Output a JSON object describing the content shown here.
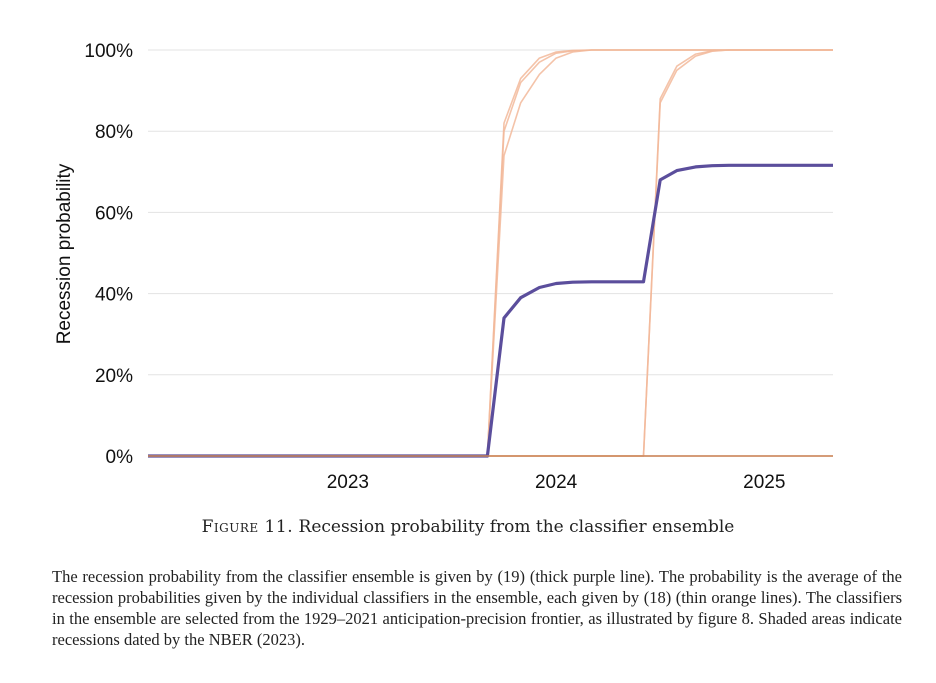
{
  "chart_data": {
    "type": "line",
    "title": "",
    "xlabel": "",
    "ylabel": "Recession probability",
    "x_ticks": [
      2023,
      2024,
      2025
    ],
    "x_tick_labels": [
      "2023",
      "2024",
      "2025"
    ],
    "xlim": [
      2022.04,
      2025.33
    ],
    "y_ticks": [
      0,
      20,
      40,
      60,
      80,
      100
    ],
    "y_tick_labels": [
      "0%",
      "20%",
      "40%",
      "60%",
      "80%",
      "100%"
    ],
    "ylim": [
      0,
      100
    ],
    "grid": "horizontal",
    "legend": "none",
    "colors": {
      "ensemble": "#5b4e9c",
      "classifier": "#f2b99a",
      "axis": "#c9865a"
    },
    "series": [
      {
        "role": "ensemble",
        "x": [
          2022.04,
          2023.67,
          2023.75,
          2023.83,
          2023.92,
          2024.0,
          2024.08,
          2024.17,
          2024.25,
          2024.42,
          2024.5,
          2024.58,
          2024.67,
          2024.75,
          2024.83,
          2025.0,
          2025.33
        ],
        "values": [
          0,
          0,
          34,
          39,
          41.5,
          42.5,
          42.8,
          42.9,
          42.9,
          42.9,
          68,
          70.3,
          71.2,
          71.5,
          71.6,
          71.6,
          71.6
        ]
      },
      {
        "role": "classifier",
        "x": [
          2022.04,
          2023.67,
          2023.75,
          2023.83,
          2023.92,
          2024.0,
          2024.08,
          2024.17,
          2024.25,
          2025.33
        ],
        "values": [
          0,
          0,
          82,
          93,
          98,
          99.5,
          99.9,
          100,
          100,
          100
        ]
      },
      {
        "role": "classifier",
        "x": [
          2022.04,
          2023.67,
          2023.75,
          2023.83,
          2023.92,
          2024.0,
          2024.08,
          2024.17,
          2024.25,
          2025.33
        ],
        "values": [
          0,
          0,
          80,
          92,
          97,
          99.2,
          99.8,
          100,
          100,
          100
        ]
      },
      {
        "role": "classifier",
        "x": [
          2022.04,
          2023.67,
          2023.75,
          2023.83,
          2023.92,
          2024.0,
          2024.08,
          2024.17,
          2024.25,
          2025.33
        ],
        "values": [
          0,
          0,
          74,
          87,
          94,
          98,
          99.5,
          100,
          100,
          100
        ]
      },
      {
        "role": "classifier",
        "x": [
          2022.04,
          2024.42,
          2024.5,
          2024.58,
          2024.67,
          2024.75,
          2024.83,
          2025.33
        ],
        "values": [
          0,
          0,
          88,
          96,
          99,
          99.8,
          100,
          100
        ]
      },
      {
        "role": "classifier",
        "x": [
          2022.04,
          2024.42,
          2024.5,
          2024.58,
          2024.67,
          2024.75,
          2024.83,
          2025.33
        ],
        "values": [
          0,
          0,
          87,
          95,
          98.5,
          99.7,
          100,
          100
        ]
      },
      {
        "role": "classifier",
        "x": [
          2022.04,
          2025.33
        ],
        "values": [
          0,
          0
        ]
      }
    ]
  },
  "caption": {
    "label": "Figure 11.",
    "title": "Recession probability from the classifier ensemble",
    "text": "The recession probability from the classifier ensemble is given by (19) (thick purple line). The probability is the average of the recession probabilities given by the individual classifiers in the ensemble, each given by (18) (thin orange lines). The classifiers in the ensemble are selected from the 1929–2021 anticipation-precision frontier, as illustrated by figure 8. Shaded areas indicate recessions dated by the NBER (2023)."
  }
}
